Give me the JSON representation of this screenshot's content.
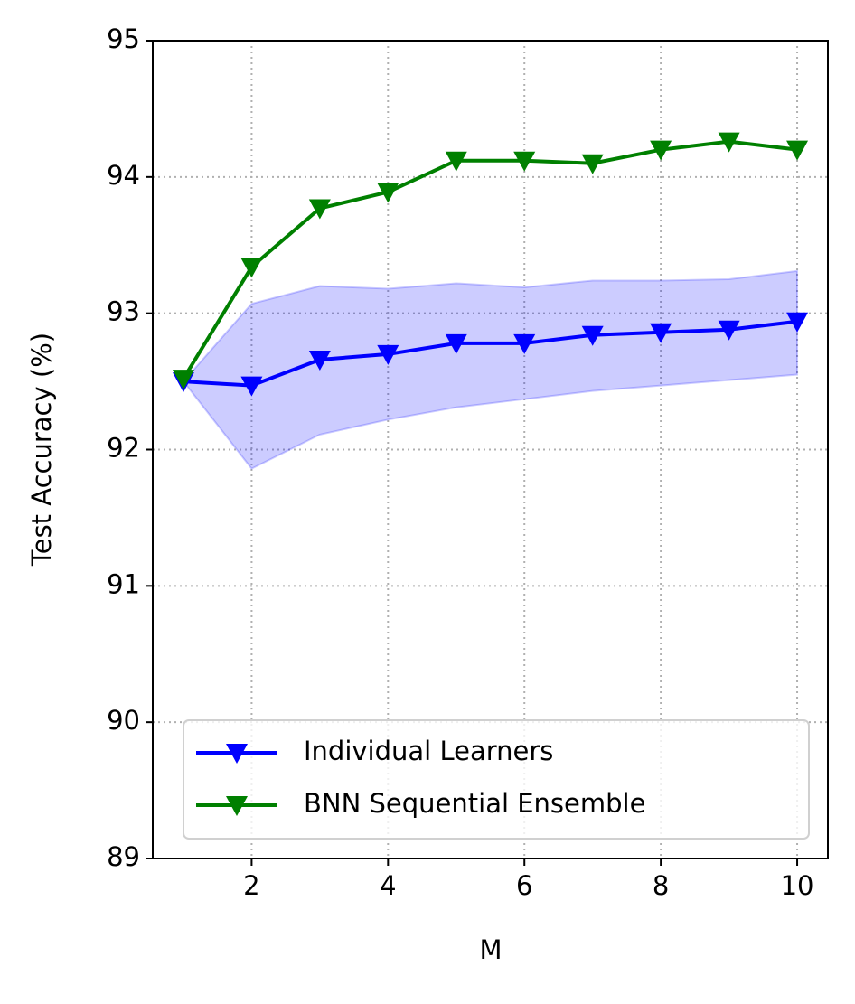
{
  "chart_data": {
    "type": "line",
    "xlabel": "M",
    "ylabel": "Test Accuracy (%)",
    "x": [
      1,
      2,
      3,
      4,
      5,
      6,
      7,
      8,
      9,
      10
    ],
    "series": [
      {
        "name": "Individual Learners",
        "color": "#0000ff",
        "values": [
          92.5,
          92.47,
          92.66,
          92.7,
          92.78,
          92.78,
          92.84,
          92.86,
          92.88,
          92.94
        ],
        "upper": [
          92.5,
          93.07,
          93.2,
          93.18,
          93.22,
          93.19,
          93.24,
          93.24,
          93.25,
          93.31
        ],
        "lower": [
          92.5,
          91.86,
          92.11,
          92.22,
          92.31,
          92.37,
          92.43,
          92.47,
          92.51,
          92.55
        ]
      },
      {
        "name": "BNN Sequential Ensemble",
        "color": "#008000",
        "values": [
          92.52,
          93.34,
          93.77,
          93.89,
          94.12,
          94.12,
          94.1,
          94.2,
          94.26,
          94.2
        ]
      }
    ],
    "xlim": [
      0.55,
      10.45
    ],
    "ylim": [
      89,
      95
    ],
    "xticks": [
      2,
      4,
      6,
      8,
      10
    ],
    "yticks": [
      89,
      90,
      91,
      92,
      93,
      94,
      95
    ],
    "grid": true,
    "legend": "lower right"
  }
}
